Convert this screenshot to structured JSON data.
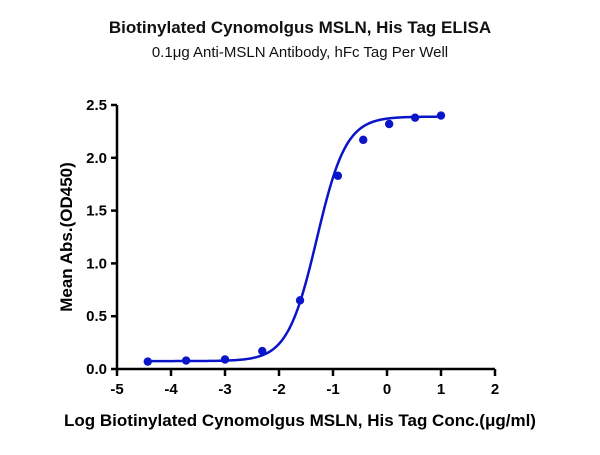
{
  "chart_data": {
    "type": "line",
    "title": "Biotinylated Cynomolgus MSLN, His Tag ELISA",
    "subtitle": "0.1μg Anti-MSLN Antibody, hFc Tag Per Well",
    "xlabel": "Log Biotinylated Cynomolgus MSLN, His Tag Conc.(μg/ml)",
    "ylabel": "Mean Abs.(OD450)",
    "xlim": [
      -5,
      2
    ],
    "ylim": [
      0,
      2.5
    ],
    "x_ticks": [
      "-5",
      "-4",
      "-3",
      "-2",
      "-1",
      "0",
      "1",
      "2"
    ],
    "y_ticks": [
      "0.0",
      "0.5",
      "1.0",
      "1.5",
      "2.0",
      "2.5"
    ],
    "grid": false,
    "legend": null,
    "series": [
      {
        "name": "Biotinylated Cynomolgus MSLN, His Tag",
        "color": "#0a14c8",
        "x": [
          -4.43,
          -3.72,
          -3.0,
          -2.31,
          -1.61,
          -0.91,
          -0.44,
          0.04,
          0.52,
          1.0
        ],
        "values": [
          0.07,
          0.08,
          0.09,
          0.17,
          0.65,
          1.83,
          2.17,
          2.32,
          2.38,
          2.4
        ],
        "fit": "4-parameter logistic"
      }
    ]
  }
}
